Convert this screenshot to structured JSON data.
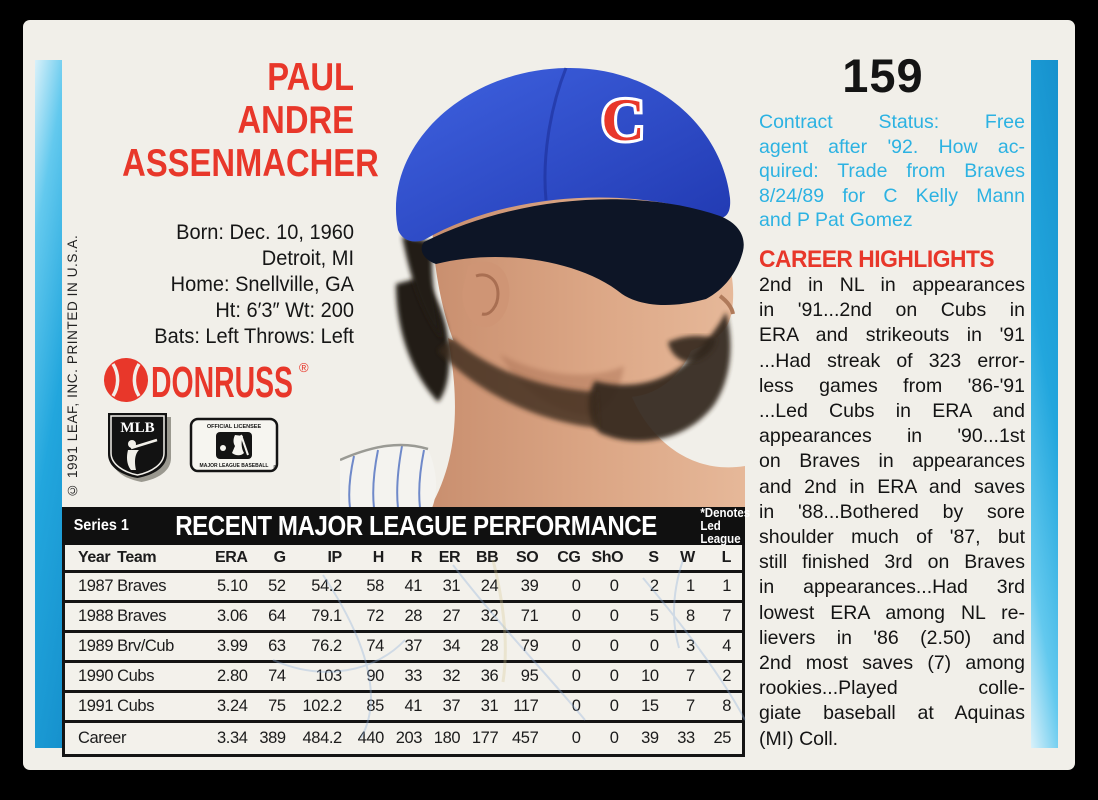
{
  "colors": {
    "accent_red": "#e8372a",
    "cyan_text": "#2cb2e2",
    "stripe_cyan": "#22a6dd",
    "card_background": "#f1efe9",
    "band_black": "#101010"
  },
  "header": {
    "card_number": "159"
  },
  "player": {
    "name_lines": [
      "PAUL",
      "ANDRE",
      "ASSENMACHER"
    ],
    "bio_lines": [
      "Born: Dec. 10, 1960",
      "Detroit, MI",
      "Home: Snellville, GA",
      "Ht: 6′3″  Wt: 200",
      "Bats: Left  Throws: Left"
    ]
  },
  "branding": {
    "donruss": "DONRUSS",
    "registered": "®",
    "mlb_shield_label": "MLB",
    "licensee_top": "OFFICIAL LICENSEE",
    "licensee_bottom": "MAJOR LEAGUE BASEBALL",
    "copyright": "© 1991 LEAF, INC. PRINTED IN U.S.A."
  },
  "contract": {
    "lines": [
      "Contract Status: Free",
      "agent after '92. How ac-",
      "quired: Trade from Braves",
      "8/24/89 for C Kelly Mann",
      "and P Pat Gomez"
    ]
  },
  "highlights": {
    "title": "CAREER HIGHLIGHTS",
    "lines": [
      "2nd in NL in appearances",
      "in '91...2nd on Cubs in",
      "ERA and strikeouts in '91",
      "...Had streak of 323 error-",
      "less games from '86-'91",
      "...Led Cubs in ERA and",
      "appearances in '90...1st",
      "on Braves in appearances",
      "and 2nd in ERA and saves",
      "in '88...Bothered by sore",
      "shoulder much of '87, but",
      "still finished 3rd on Braves",
      "in appearances...Had 3rd",
      "lowest ERA among NL re-",
      "lievers in '86 (2.50) and",
      "2nd most saves (7) among",
      "rookies...Played colle-",
      "giate baseball at Aquinas",
      "(MI) Coll."
    ]
  },
  "stats": {
    "series_label": "Series 1",
    "title": "RECENT MAJOR LEAGUE PERFORMANCE",
    "denotes_lines": [
      "*Denotes",
      "Led League"
    ],
    "columns": [
      "Year",
      "Team",
      "ERA",
      "G",
      "IP",
      "H",
      "R",
      "ER",
      "BB",
      "SO",
      "CG",
      "ShO",
      "S",
      "W",
      "L"
    ],
    "rows": [
      [
        "1987",
        "Braves",
        "5.10",
        "52",
        "54.2",
        "58",
        "41",
        "31",
        "24",
        "39",
        "0",
        "0",
        "2",
        "1",
        "1"
      ],
      [
        "1988",
        "Braves",
        "3.06",
        "64",
        "79.1",
        "72",
        "28",
        "27",
        "32",
        "71",
        "0",
        "0",
        "5",
        "8",
        "7"
      ],
      [
        "1989",
        "Brv/Cub",
        "3.99",
        "63",
        "76.2",
        "74",
        "37",
        "34",
        "28",
        "79",
        "0",
        "0",
        "0",
        "3",
        "4"
      ],
      [
        "1990",
        "Cubs",
        "2.80",
        "74",
        "103",
        "90",
        "33",
        "32",
        "36",
        "95",
        "0",
        "0",
        "10",
        "7",
        "2"
      ],
      [
        "1991",
        "Cubs",
        "3.24",
        "75",
        "102.2",
        "85",
        "41",
        "37",
        "31",
        "117",
        "0",
        "0",
        "15",
        "7",
        "8"
      ]
    ],
    "career_label": "Career",
    "career_row": [
      "3.34",
      "389",
      "484.2",
      "440",
      "203",
      "180",
      "177",
      "457",
      "0",
      "0",
      "39",
      "33",
      "25"
    ]
  }
}
